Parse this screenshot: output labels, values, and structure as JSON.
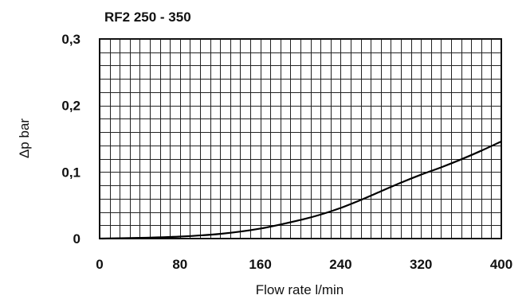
{
  "chart_data": {
    "type": "line",
    "title": "RF2 250 - 350",
    "xlabel": "Flow rate l/min",
    "ylabel": "Δp bar",
    "xlim": [
      0,
      400
    ],
    "ylim": [
      0,
      0.3
    ],
    "x_ticks": [
      0,
      80,
      160,
      240,
      320,
      400
    ],
    "x_tick_labels": [
      "0",
      "80",
      "160",
      "240",
      "320",
      "400"
    ],
    "y_ticks": [
      0,
      0.1,
      0.2,
      0.3
    ],
    "y_tick_labels": [
      "0",
      "0,1",
      "0,2",
      "0,3"
    ],
    "grid": true,
    "x_minor_divisions": 40,
    "y_minor_divisions": 15,
    "series": [
      {
        "x": [
          0,
          40,
          80,
          120,
          160,
          200,
          220,
          240,
          260,
          280,
          300,
          320,
          340,
          360,
          380,
          400
        ],
        "y": [
          0,
          0.001,
          0.003,
          0.007,
          0.015,
          0.028,
          0.036,
          0.046,
          0.058,
          0.071,
          0.084,
          0.096,
          0.107,
          0.119,
          0.132,
          0.146
        ]
      }
    ]
  }
}
